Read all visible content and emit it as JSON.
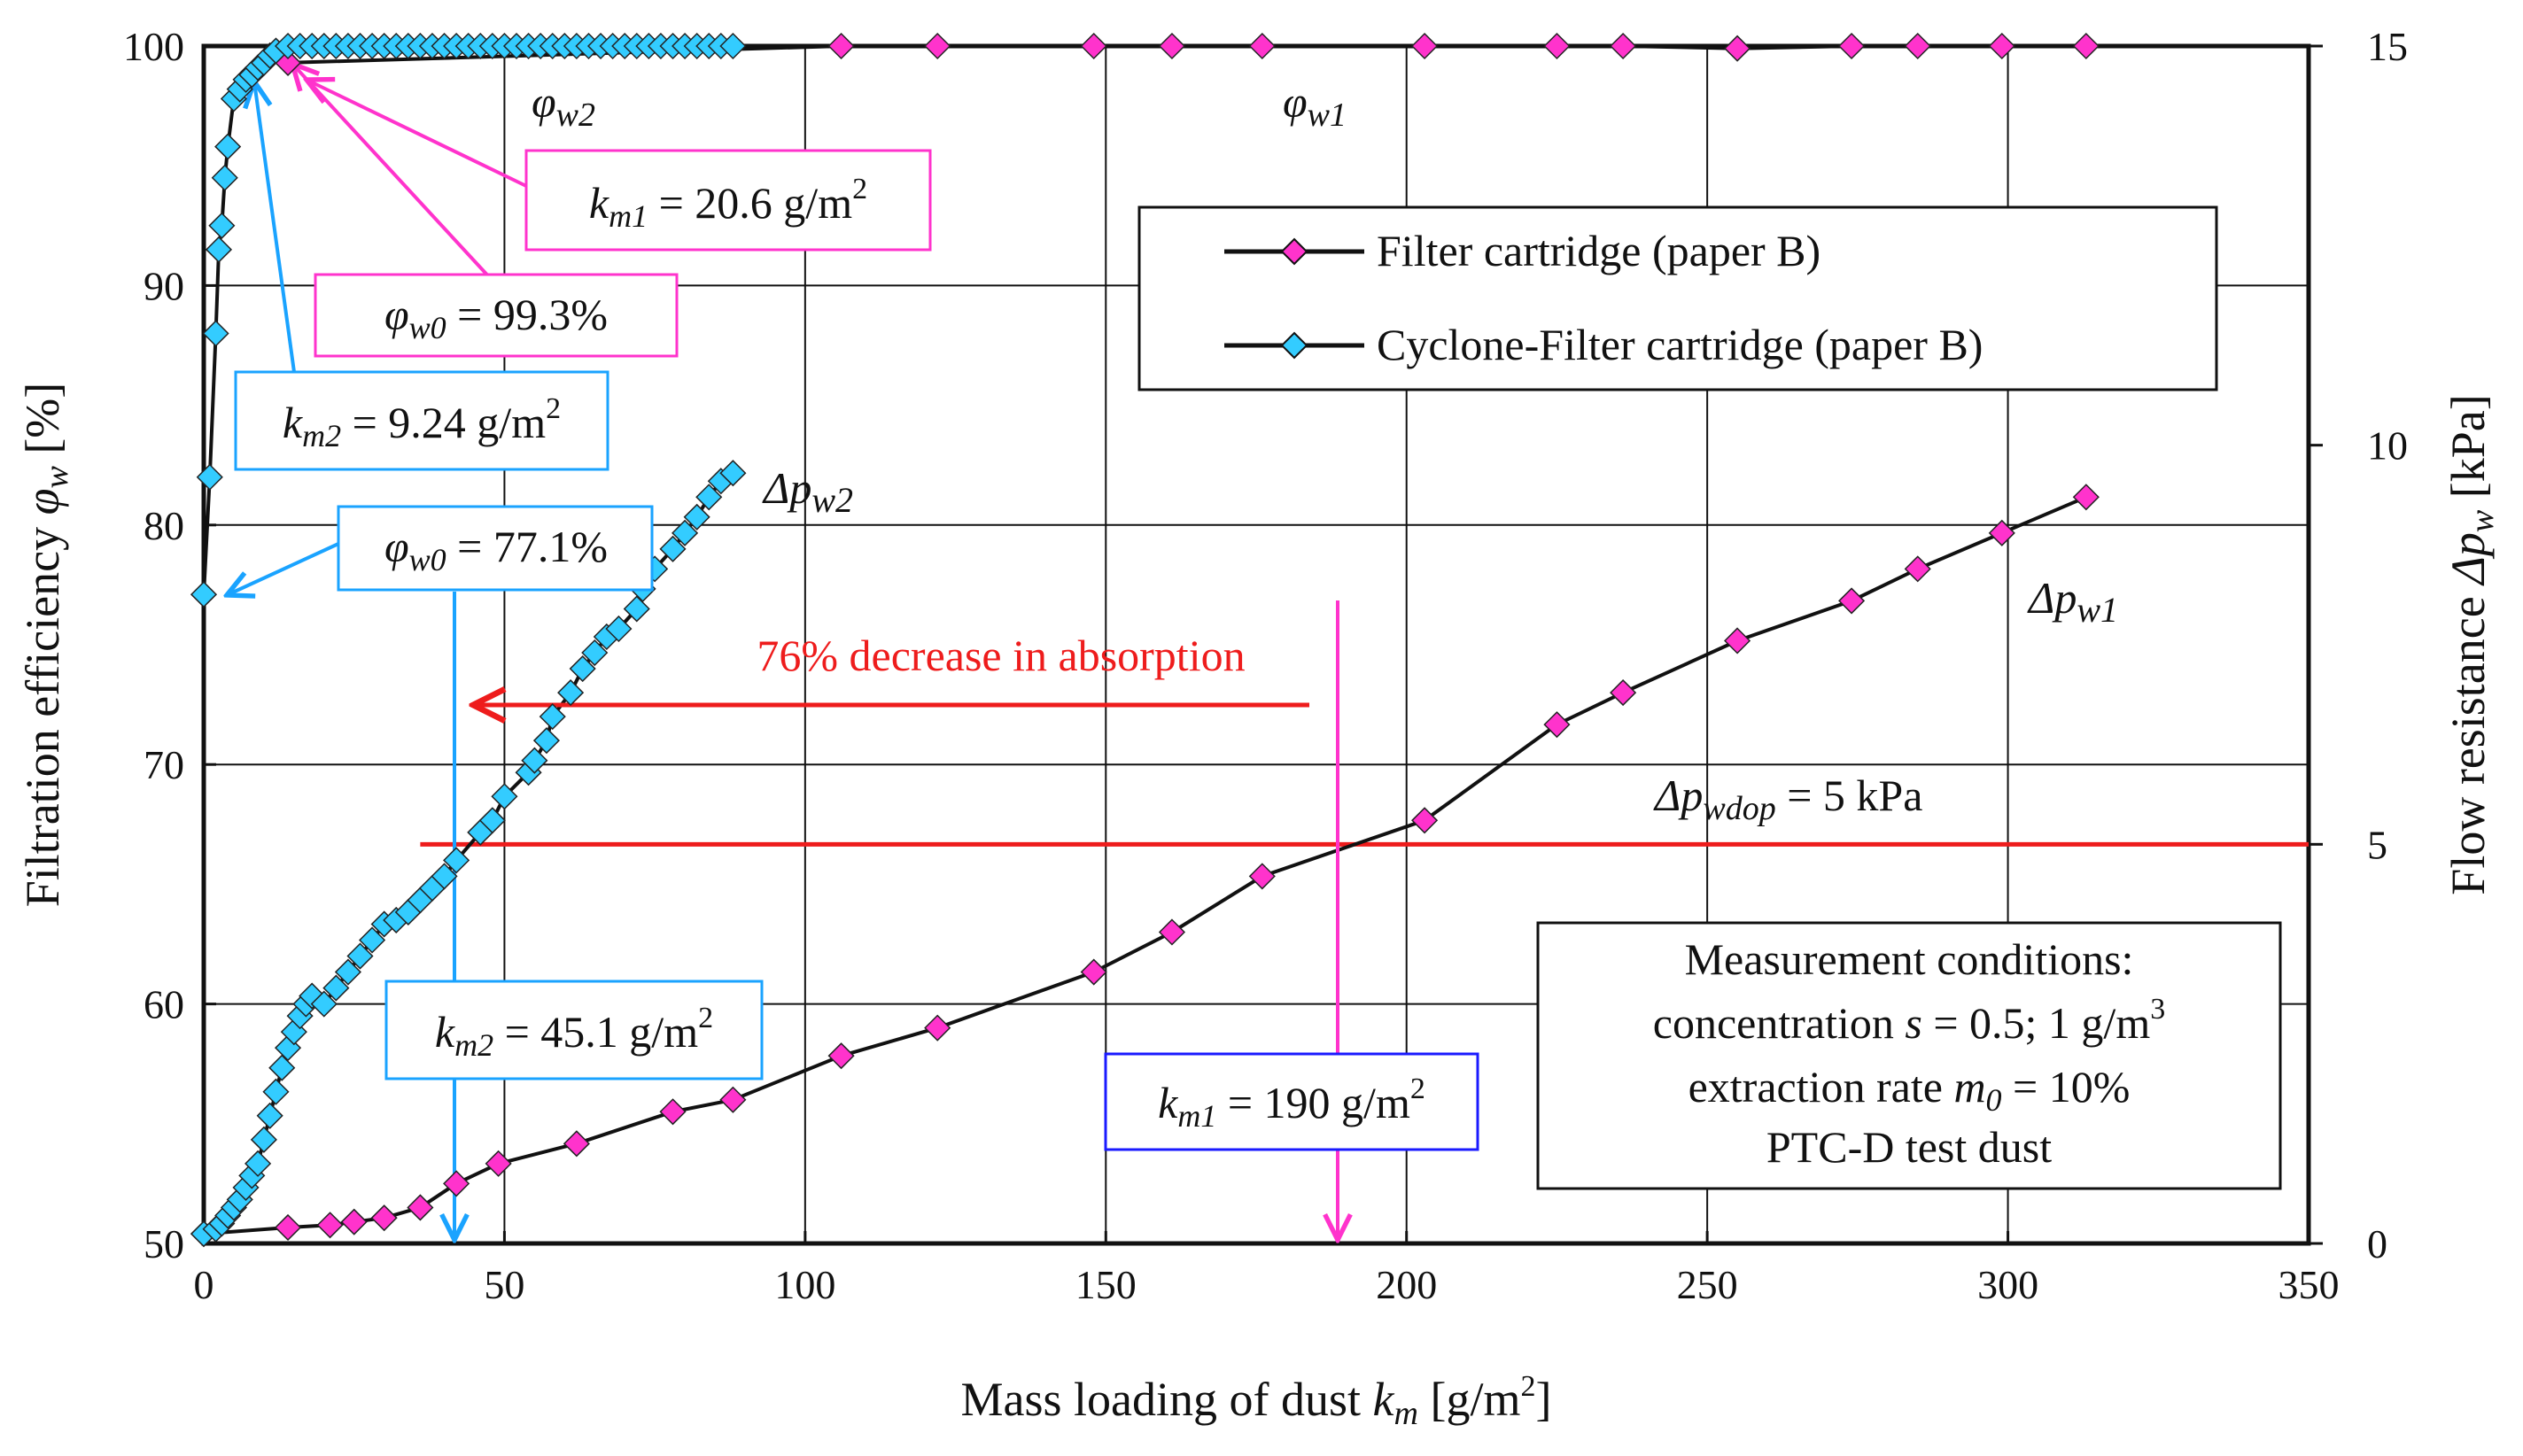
{
  "chart_data": {
    "type": "line",
    "xlabel_main": "Mass loading of dust ",
    "xlabel_var": "k",
    "xlabel_sub": "m",
    "xlabel_unit": " [g/m",
    "xlabel_unit_sup": "2",
    "xlabel_unit_end": "]",
    "ylabel_left_main": "Filtration efficiency ",
    "ylabel_left_var": "φ",
    "ylabel_left_sub": "w",
    "ylabel_left_unit": " [%]",
    "ylabel_right_main": "Flow resistance ",
    "ylabel_right_var": "Δp",
    "ylabel_right_sub": "w",
    "ylabel_right_unit": " [kPa]",
    "xlim": [
      0,
      350
    ],
    "ylim_left": [
      50,
      100
    ],
    "ylim_right": [
      0,
      15
    ],
    "x_ticks": [
      "0",
      "50",
      "100",
      "150",
      "200",
      "250",
      "300",
      "350"
    ],
    "y_left_ticks": [
      "50",
      "60",
      "70",
      "80",
      "90",
      "100"
    ],
    "y_right_ticks": [
      "0",
      "5",
      "10",
      "15"
    ],
    "colors": {
      "paper_b": "#ff33cc",
      "cyclone": "#33ccff",
      "line": "#111111",
      "red": "#ee1c1c",
      "blue_box": "#1a1aff",
      "pink_arrow": "#ff33cc",
      "cyan_arrow": "#1aa3ff"
    },
    "legend": [
      {
        "name": "Filter cartridge (paper B)",
        "color": "#ff33cc"
      },
      {
        "name": "Cyclone-Filter cartridge (paper B)",
        "color": "#33ccff"
      }
    ],
    "series": [
      {
        "name": "Filter cartridge efficiency φw1",
        "axis": "left",
        "color": "#ff33cc",
        "x": [
          14,
          106,
          122,
          148,
          161,
          176,
          203,
          225,
          236,
          255,
          274,
          285,
          299,
          313
        ],
        "y": [
          99.3,
          100,
          100,
          100,
          100,
          100,
          100,
          100,
          100,
          99.9,
          100,
          100,
          100,
          100
        ]
      },
      {
        "name": "Filter cartridge resistance Δpw1",
        "axis": "right",
        "color": "#ff33cc",
        "x": [
          0,
          14,
          21,
          25,
          30,
          36,
          42,
          49,
          62,
          78,
          88,
          106,
          122,
          148,
          161,
          176,
          203,
          225,
          236,
          255,
          274,
          285,
          299,
          313
        ],
        "y": [
          0.12,
          0.2,
          0.23,
          0.27,
          0.32,
          0.45,
          0.75,
          1.0,
          1.25,
          1.65,
          1.8,
          2.35,
          2.7,
          3.4,
          3.9,
          4.6,
          5.3,
          6.5,
          6.9,
          7.55,
          8.05,
          8.45,
          8.9,
          9.35
        ]
      },
      {
        "name": "Cyclone-Filter efficiency φw2",
        "axis": "left",
        "color": "#33ccff",
        "x": [
          0,
          1,
          2,
          2.5,
          3,
          3.5,
          4,
          5,
          6,
          7,
          8,
          9,
          10,
          11,
          12,
          14,
          16,
          18,
          20,
          22,
          24,
          26,
          28,
          30,
          32,
          34,
          36,
          38,
          40,
          42,
          44,
          46,
          48,
          50,
          52,
          54,
          56,
          58,
          60,
          62,
          64,
          66,
          68,
          70,
          72,
          74,
          76,
          78,
          80,
          82,
          84,
          86,
          88
        ],
        "y": [
          77.1,
          82,
          88,
          91.5,
          92.5,
          94.5,
          95.8,
          97.8,
          98.2,
          98.6,
          98.8,
          99.1,
          99.3,
          99.6,
          99.8,
          100,
          100,
          100,
          100,
          100,
          100,
          100,
          100,
          100,
          100,
          100,
          100,
          100,
          100,
          100,
          100,
          100,
          100,
          100,
          100,
          100,
          100,
          100,
          100,
          100,
          100,
          100,
          100,
          100,
          100,
          100,
          100,
          100,
          100,
          100,
          100,
          100,
          100
        ]
      },
      {
        "name": "Cyclone-Filter resistance Δpw2",
        "axis": "right",
        "color": "#33ccff",
        "x": [
          0,
          2,
          3,
          4,
          5,
          6,
          7,
          8,
          9,
          10,
          11,
          12,
          13,
          14,
          15,
          16,
          17,
          18,
          20,
          22,
          24,
          26,
          28,
          30,
          32,
          34,
          36,
          38,
          40,
          42,
          46,
          48,
          50,
          54,
          55,
          57,
          58,
          61,
          63,
          65,
          67,
          69,
          72,
          73,
          75,
          78,
          80,
          82,
          84,
          86,
          88
        ],
        "y": [
          0.12,
          0.18,
          0.25,
          0.35,
          0.45,
          0.55,
          0.7,
          0.85,
          1.0,
          1.3,
          1.6,
          1.9,
          2.2,
          2.45,
          2.65,
          2.85,
          3.0,
          3.1,
          3.0,
          3.2,
          3.4,
          3.6,
          3.8,
          4.0,
          4.05,
          4.15,
          4.3,
          4.45,
          4.6,
          4.8,
          5.15,
          5.3,
          5.6,
          5.9,
          6.05,
          6.3,
          6.6,
          6.9,
          7.2,
          7.4,
          7.6,
          7.7,
          7.95,
          8.2,
          8.45,
          8.7,
          8.9,
          9.1,
          9.35,
          9.55,
          9.65
        ]
      }
    ],
    "reference_line": {
      "label_var": "Δp",
      "label_sub": "wdop",
      "label_rest": " = 5 kPa",
      "value_kpa": 5,
      "x_start": 36
    },
    "annotations": {
      "phi_w2": {
        "var": "φ",
        "sub": "w2"
      },
      "phi_w1": {
        "var": "φ",
        "sub": "w1"
      },
      "dp_w2": {
        "var": "Δp",
        "sub": "w2"
      },
      "dp_w1": {
        "var": "Δp",
        "sub": "w1"
      },
      "km1_top": {
        "var": "k",
        "sub": "m1",
        "rest": " = 20.6 g/m",
        "sup": "2"
      },
      "phiw0_top": {
        "var": "φ",
        "sub": "w0",
        "rest": " = 99.3%"
      },
      "km2_top": {
        "var": "k",
        "sub": "m2",
        "rest": " = 9.24 g/m",
        "sup": "2"
      },
      "phiw0_mid": {
        "var": "φ",
        "sub": "w0",
        "rest": " = 77.1%"
      },
      "km2_bottom": {
        "var": "k",
        "sub": "m2",
        "rest": " = 45.1 g/m",
        "sup": "2"
      },
      "km1_bottom": {
        "var": "k",
        "sub": "m1",
        "rest": " = 190 g/m",
        "sup": "2"
      },
      "decrease": "76% decrease in absorption"
    },
    "conditions": {
      "line1": "Measurement conditions:",
      "line2_pre": "concentration ",
      "line2_var": "s",
      "line2_mid": " = 0.5; 1 g/m",
      "line2_sup": "3",
      "line3_pre": "extraction rate ",
      "line3_var": "m",
      "line3_sub": "0",
      "line3_rest": " = 10%",
      "line4": "PTC-D test dust"
    }
  }
}
